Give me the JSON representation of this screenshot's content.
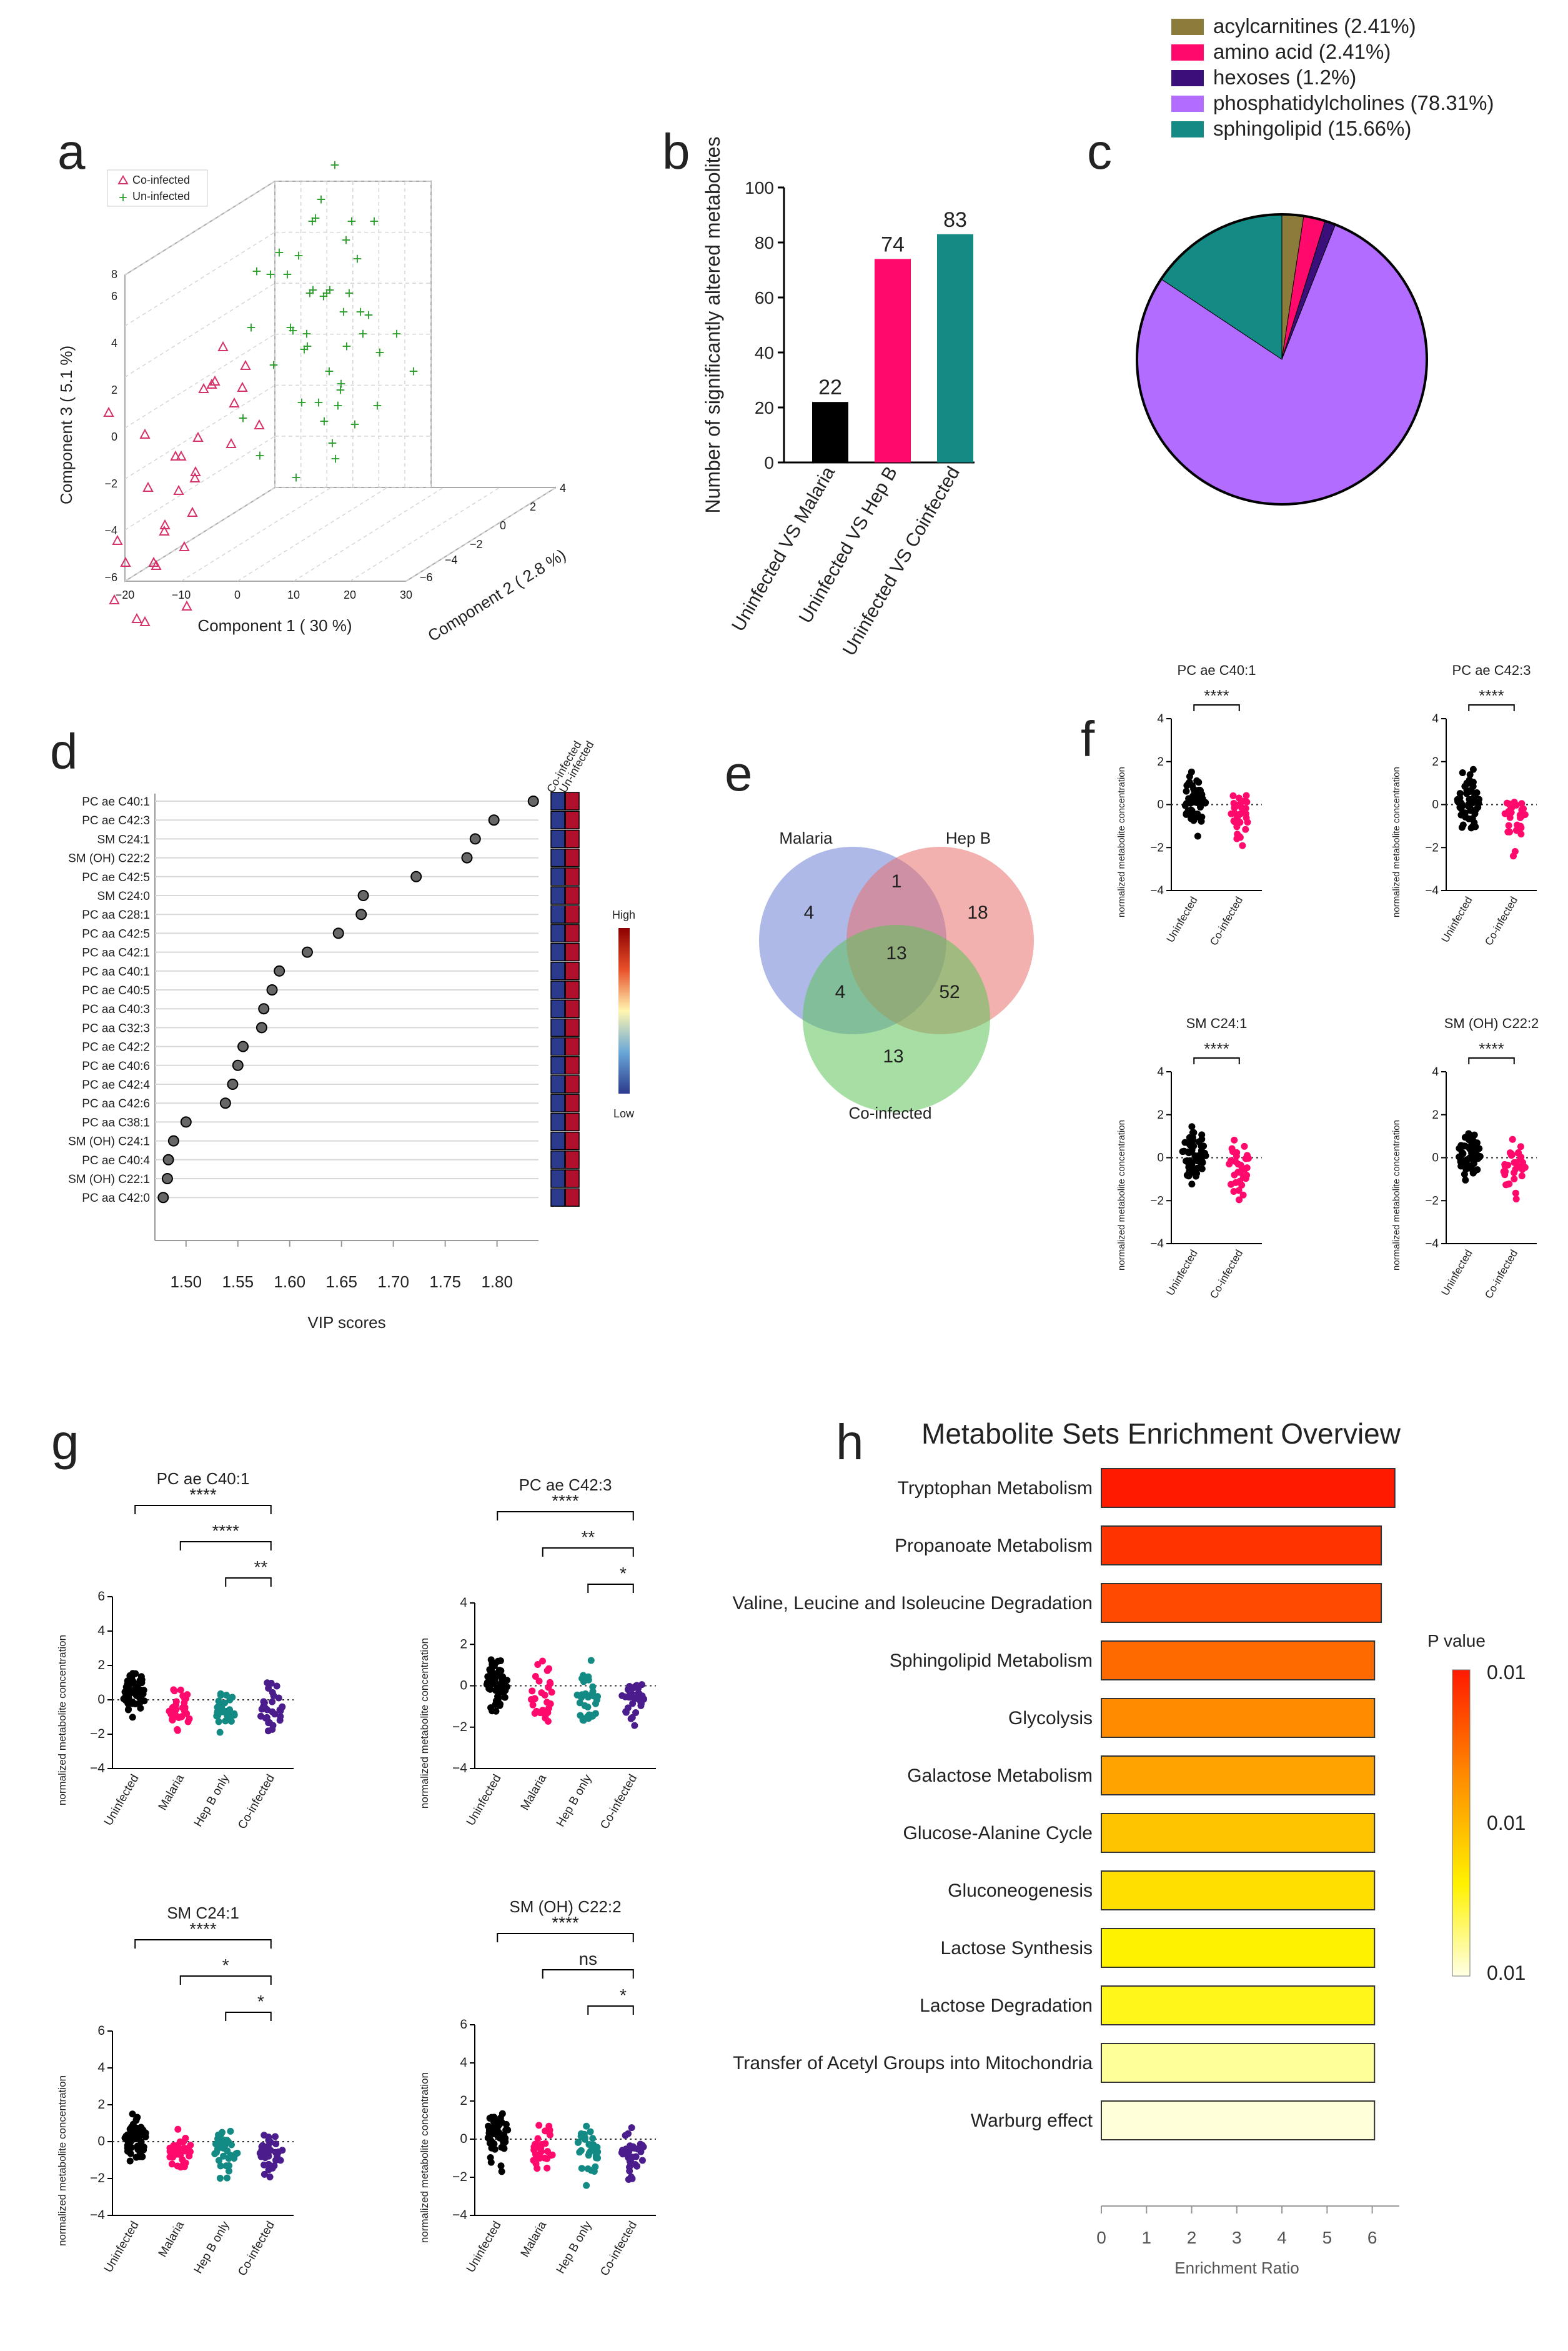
{
  "figure": {
    "panel_letters": [
      "a",
      "b",
      "c",
      "d",
      "e",
      "f",
      "g",
      "h"
    ]
  },
  "chart_data": [
    {
      "id": "a",
      "type": "scatter",
      "subtype": "3d-pls-da",
      "legend": [
        "Co-infected",
        "Un-infected"
      ],
      "colors": {
        "Co-infected": "#d6336c",
        "Un-infected": "#2ca02c"
      },
      "xlabel": "Component 1 ( 30 %)",
      "ylabel": "Component 2 ( 2.8 %)",
      "zlabel": "Component 3 ( 5.1 %)",
      "xticks": [
        "−20",
        "−10",
        "0",
        "10",
        "20",
        "30"
      ],
      "yticks": [
        "−6",
        "−4",
        "−2",
        "0",
        "2",
        "4"
      ],
      "zticks": [
        "−6",
        "−4",
        "−2",
        "0",
        "2",
        "4",
        "6",
        "8"
      ],
      "series": [
        {
          "name": "Co-infected",
          "points": [
            [
              -14,
              -2,
              3
            ],
            [
              -12,
              -1,
              2
            ],
            [
              -10,
              0,
              1
            ],
            [
              -8,
              -3,
              0
            ],
            [
              -11,
              -2,
              -1
            ],
            [
              -9,
              1,
              2.5
            ],
            [
              -7,
              0,
              1.5
            ],
            [
              -6,
              -1,
              0.5
            ],
            [
              -13,
              -2,
              -2
            ],
            [
              -10,
              -1,
              -1.5
            ],
            [
              -8,
              0,
              -0.5
            ],
            [
              -5,
              1,
              2
            ],
            [
              -4,
              0,
              3
            ],
            [
              -3,
              -1,
              1
            ],
            [
              -12,
              1,
              0
            ],
            [
              -9,
              -2,
              -2.5
            ],
            [
              -6,
              -2,
              -1
            ],
            [
              -7,
              1,
              3.5
            ],
            [
              -11,
              0,
              1
            ],
            [
              -5,
              -1,
              -1
            ],
            [
              -8,
              2,
              2
            ],
            [
              -10,
              2,
              0.5
            ],
            [
              -13,
              0,
              -1
            ],
            [
              -6,
              0,
              2.8
            ],
            [
              -4,
              -2,
              0
            ],
            [
              -9,
              0,
              -3
            ],
            [
              -7,
              -2,
              1
            ],
            [
              -12,
              -1,
              -3
            ],
            [
              -5,
              2,
              1
            ],
            [
              -3,
              1,
              3
            ]
          ]
        },
        {
          "name": "Un-infected",
          "points": [
            [
              -2,
              1,
              4
            ],
            [
              0,
              2,
              5
            ],
            [
              2,
              1,
              3
            ],
            [
              4,
              2,
              4.5
            ],
            [
              6,
              3,
              5.5
            ],
            [
              8,
              1,
              3.5
            ],
            [
              10,
              2,
              4
            ],
            [
              12,
              3,
              2.5
            ],
            [
              1,
              0,
              2
            ],
            [
              3,
              1,
              6
            ],
            [
              5,
              2,
              6.5
            ],
            [
              7,
              1,
              2
            ],
            [
              9,
              3,
              3
            ],
            [
              11,
              1,
              1.5
            ],
            [
              13,
              2,
              4
            ],
            [
              15,
              3,
              3
            ],
            [
              -1,
              1,
              5.5
            ],
            [
              2,
              3,
              4
            ],
            [
              4,
              0,
              1
            ],
            [
              6,
              2,
              7
            ],
            [
              8,
              3,
              5
            ],
            [
              10,
              1,
              2
            ],
            [
              12,
              2,
              1
            ],
            [
              14,
              1,
              2.5
            ],
            [
              0,
              3,
              6
            ],
            [
              3,
              2,
              3
            ],
            [
              5,
              3,
              1.5
            ],
            [
              7,
              2,
              4.5
            ],
            [
              9,
              1,
              5
            ],
            [
              11,
              3,
              6
            ],
            [
              13,
              1,
              0.5
            ],
            [
              1,
              2,
              3.5
            ],
            [
              -3,
              2,
              5
            ],
            [
              16,
              2,
              1.5
            ],
            [
              6,
              1,
              0
            ],
            [
              18,
              3,
              2
            ],
            [
              4,
              3,
              7.5
            ],
            [
              2,
              2,
              5.5
            ],
            [
              8,
              2,
              0.5
            ],
            [
              10,
              3,
              3.5
            ],
            [
              12,
              1,
              5
            ],
            [
              -1,
              3,
              3
            ],
            [
              5,
              1,
              4
            ],
            [
              7,
              3,
              6
            ],
            [
              3,
              3,
              2
            ],
            [
              9,
              2,
              1.5
            ],
            [
              15,
              1,
              3.5
            ],
            [
              11,
              2,
              4.5
            ]
          ]
        }
      ]
    },
    {
      "id": "b",
      "type": "bar",
      "categories": [
        "Uninfected VS Malaria",
        "Uninfected VS Hep B",
        "Uninfected VS Coinfected"
      ],
      "values": [
        22,
        74,
        83
      ],
      "colors": [
        "#000000",
        "#ff0a6c",
        "#138a84"
      ],
      "ylabel": "Number of significantly altered metabolites",
      "ylim": [
        0,
        100
      ],
      "yticks": [
        "0",
        "20",
        "40",
        "60",
        "80",
        "100"
      ]
    },
    {
      "id": "c",
      "type": "pie",
      "labels": [
        "acylcarnitines (2.41%)",
        "amino acid (2.41%)",
        "hexoses (1.2%)",
        "phosphatidylcholines (78.31%)",
        "sphingolipid (15.66%)"
      ],
      "values": [
        2.41,
        2.41,
        1.2,
        78.31,
        15.66
      ],
      "colors": [
        "#8c7c3c",
        "#ff0a6c",
        "#3a0f7a",
        "#b26cff",
        "#138a84"
      ]
    },
    {
      "id": "d",
      "type": "scatter",
      "subtype": "vip-scores",
      "xlabel": "VIP scores",
      "xlim": [
        1.47,
        1.84
      ],
      "xticks": [
        "1.50",
        "1.55",
        "1.60",
        "1.65",
        "1.70",
        "1.75",
        "1.80"
      ],
      "categories": [
        "PC ae C40:1",
        "PC ae C42:3",
        "SM C24:1",
        "SM (OH) C22:2",
        "PC ae C42:5",
        "SM C24:0",
        "PC aa C28:1",
        "PC aa C42:5",
        "PC aa C42:1",
        "PC aa C40:1",
        "PC ae C40:5",
        "PC aa C40:3",
        "PC aa C32:3",
        "PC ae C42:2",
        "PC ae C40:6",
        "PC ae C42:4",
        "PC aa C42:6",
        "PC aa C38:1",
        "SM (OH) C24:1",
        "PC ae C40:4",
        "SM (OH) C22:1",
        "PC aa C42:0"
      ],
      "values": [
        1.835,
        1.797,
        1.779,
        1.771,
        1.722,
        1.671,
        1.669,
        1.647,
        1.617,
        1.59,
        1.583,
        1.575,
        1.573,
        1.555,
        1.55,
        1.545,
        1.538,
        1.5,
        1.488,
        1.483,
        1.482,
        1.478
      ],
      "heatmap_columns": [
        "Co-infected",
        "Un-infected"
      ],
      "heatmap_colors": [
        "#2b3a8c",
        "#b0102c"
      ],
      "colorbar": {
        "high": "High",
        "low": "Low"
      }
    },
    {
      "id": "e",
      "type": "venn",
      "sets": [
        "Malaria",
        "Hep B",
        "Co-infected"
      ],
      "regions": {
        "malaria_only": "4",
        "hepb_only": "18",
        "coinfected_only": "13",
        "malaria_hepb": "1",
        "malaria_coinfected": "4",
        "hepb_coinfected": "52",
        "all": "13"
      },
      "colors": [
        "#6c7fd6",
        "#e8706c",
        "#5fc25a"
      ]
    },
    {
      "id": "f",
      "type": "scatter",
      "subtype": "dot-plot-grid",
      "ylabel": "normalized metabolite concentration",
      "groups": [
        "Uninfected",
        "Co-infected"
      ],
      "group_colors": [
        "#000000",
        "#ff0a6c"
      ],
      "ylim": [
        -4,
        4
      ],
      "yticks": [
        "−4",
        "−2",
        "0",
        "2",
        "4"
      ],
      "subplots": [
        {
          "title": "PC ae C40:1",
          "significance": "****"
        },
        {
          "title": "PC ae C42:3",
          "significance": "****"
        },
        {
          "title": "SM C24:1",
          "significance": "****"
        },
        {
          "title": "SM (OH) C22:2",
          "significance": "****"
        }
      ]
    },
    {
      "id": "g",
      "type": "scatter",
      "subtype": "dot-plot-grid",
      "ylabel": "normalized metabolite concentration",
      "groups": [
        "Uninfected",
        "Malaria",
        "Hep B only",
        "Co-infected"
      ],
      "group_colors": [
        "#000000",
        "#ff0a6c",
        "#138a84",
        "#4b1c8c"
      ],
      "subplots": [
        {
          "title": "PC ae C40:1",
          "ylim": [
            -4,
            6
          ],
          "yticks": [
            "−4",
            "−2",
            "0",
            "2",
            "4",
            "6"
          ],
          "brackets": [
            "****",
            "****",
            "**"
          ]
        },
        {
          "title": "PC ae C42:3",
          "ylim": [
            -4,
            4
          ],
          "yticks": [
            "−4",
            "−2",
            "0",
            "2",
            "4"
          ],
          "brackets": [
            "****",
            "**",
            "*"
          ]
        },
        {
          "title": "SM C24:1",
          "ylim": [
            -4,
            6
          ],
          "yticks": [
            "−4",
            "−2",
            "0",
            "2",
            "4",
            "6"
          ],
          "brackets": [
            "****",
            "*",
            "*"
          ]
        },
        {
          "title": "SM (OH) C22:2",
          "ylim": [
            -4,
            6
          ],
          "yticks": [
            "−4",
            "−2",
            "0",
            "2",
            "4",
            "6"
          ],
          "brackets": [
            "****",
            "ns",
            "*"
          ]
        }
      ]
    },
    {
      "id": "h",
      "type": "bar",
      "orientation": "horizontal",
      "title": "Metabolite Sets Enrichment Overview",
      "categories": [
        "Tryptophan Metabolism",
        "Propanoate Metabolism",
        "Valine, Leucine and Isoleucine Degradation",
        "Sphingolipid Metabolism",
        "Glycolysis",
        "Galactose Metabolism",
        "Glucose-Alanine Cycle",
        "Gluconeogenesis",
        "Lactose Synthesis",
        "Lactose Degradation",
        "Transfer of Acetyl Groups into Mitochondria",
        "Warburg effect"
      ],
      "values": [
        6.5,
        6.2,
        6.2,
        6.05,
        6.05,
        6.05,
        6.05,
        6.05,
        6.05,
        6.05,
        6.05,
        6.05
      ],
      "colors": [
        "#ff1a00",
        "#ff3300",
        "#ff4a00",
        "#ff6a00",
        "#ff8c00",
        "#ffa300",
        "#ffc400",
        "#ffdf00",
        "#fff200",
        "#fff71a",
        "#ffff99",
        "#ffffd9"
      ],
      "xlabel": "Enrichment Ratio",
      "xlim": [
        0,
        6.6
      ],
      "xticks": [
        "0",
        "1",
        "2",
        "3",
        "4",
        "5",
        "6"
      ],
      "colorbar": {
        "title": "P value",
        "labels": [
          "0.01",
          "0.01",
          "0.01"
        ]
      }
    }
  ]
}
